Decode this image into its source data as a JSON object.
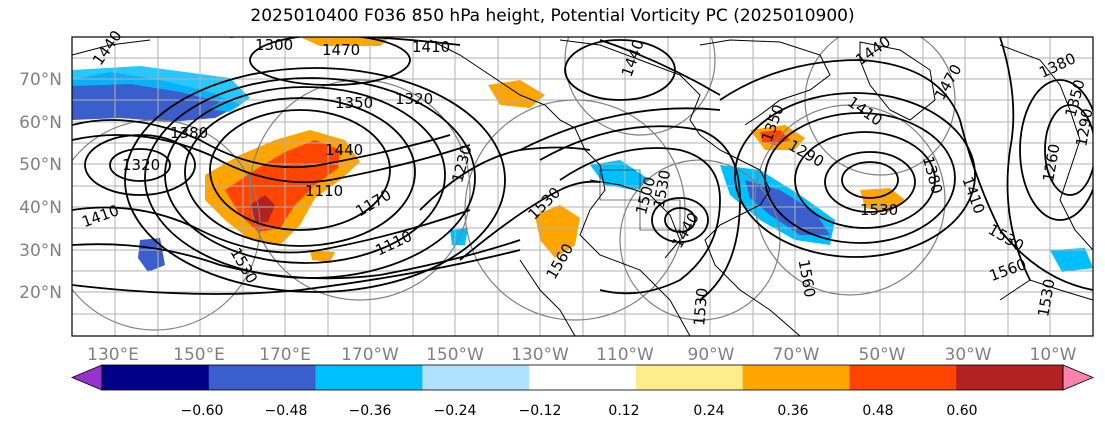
{
  "title": "2025010400 F036 850 hPa height, Potential Vorticity PC (2025010900)",
  "map": {
    "lon_labels": [
      "130°E",
      "150°E",
      "170°E",
      "170°W",
      "150°W",
      "130°W",
      "110°W",
      "90°W",
      "70°W",
      "50°W",
      "30°W",
      "10°W"
    ],
    "lat_labels": [
      "70°N",
      "60°N",
      "50°N",
      "40°N",
      "30°N",
      "20°N"
    ],
    "contour_labels": [
      {
        "text": "1300"
      },
      {
        "text": "1470"
      },
      {
        "text": "1410"
      },
      {
        "text": "1440"
      },
      {
        "text": "1380"
      },
      {
        "text": "1320"
      },
      {
        "text": "1350"
      },
      {
        "text": "1320"
      },
      {
        "text": "1440"
      },
      {
        "text": "1110"
      },
      {
        "text": "1170"
      },
      {
        "text": "1230"
      },
      {
        "text": "1410"
      },
      {
        "text": "1530"
      },
      {
        "text": "1110"
      },
      {
        "text": "1530"
      },
      {
        "text": "1560"
      },
      {
        "text": "1530"
      },
      {
        "text": "1440"
      },
      {
        "text": "1560"
      },
      {
        "text": "1530"
      },
      {
        "text": "1440"
      },
      {
        "text": "1470"
      },
      {
        "text": "1410"
      },
      {
        "text": "1350"
      },
      {
        "text": "1290"
      },
      {
        "text": "1380"
      },
      {
        "text": "1410"
      },
      {
        "text": "1530"
      },
      {
        "text": "1560"
      },
      {
        "text": "1530"
      },
      {
        "text": "1380"
      },
      {
        "text": "1350"
      },
      {
        "text": "1290"
      },
      {
        "text": "1260"
      },
      {
        "text": "1530"
      },
      {
        "text": "1500"
      },
      {
        "text": "1440"
      }
    ]
  },
  "colorbar": {
    "tick_labels": [
      "−0.60",
      "−0.48",
      "−0.36",
      "−0.24",
      "−0.12",
      "0.12",
      "0.24",
      "0.36",
      "0.48",
      "0.60"
    ],
    "colors": [
      "#9932cc",
      "#00008b",
      "#3a5fcd",
      "#00bfff",
      "#b0e2ff",
      "#ffffff",
      "#ffec8b",
      "#ffa500",
      "#ff4500",
      "#b22222",
      "#ff82ab"
    ]
  },
  "shading_colors": {
    "negative_strong": "#3a5fcd",
    "negative_mid": "#00bfff",
    "positive_mid": "#ffa500",
    "positive_strong": "#ff4500",
    "positive_deep": "#b22222"
  }
}
